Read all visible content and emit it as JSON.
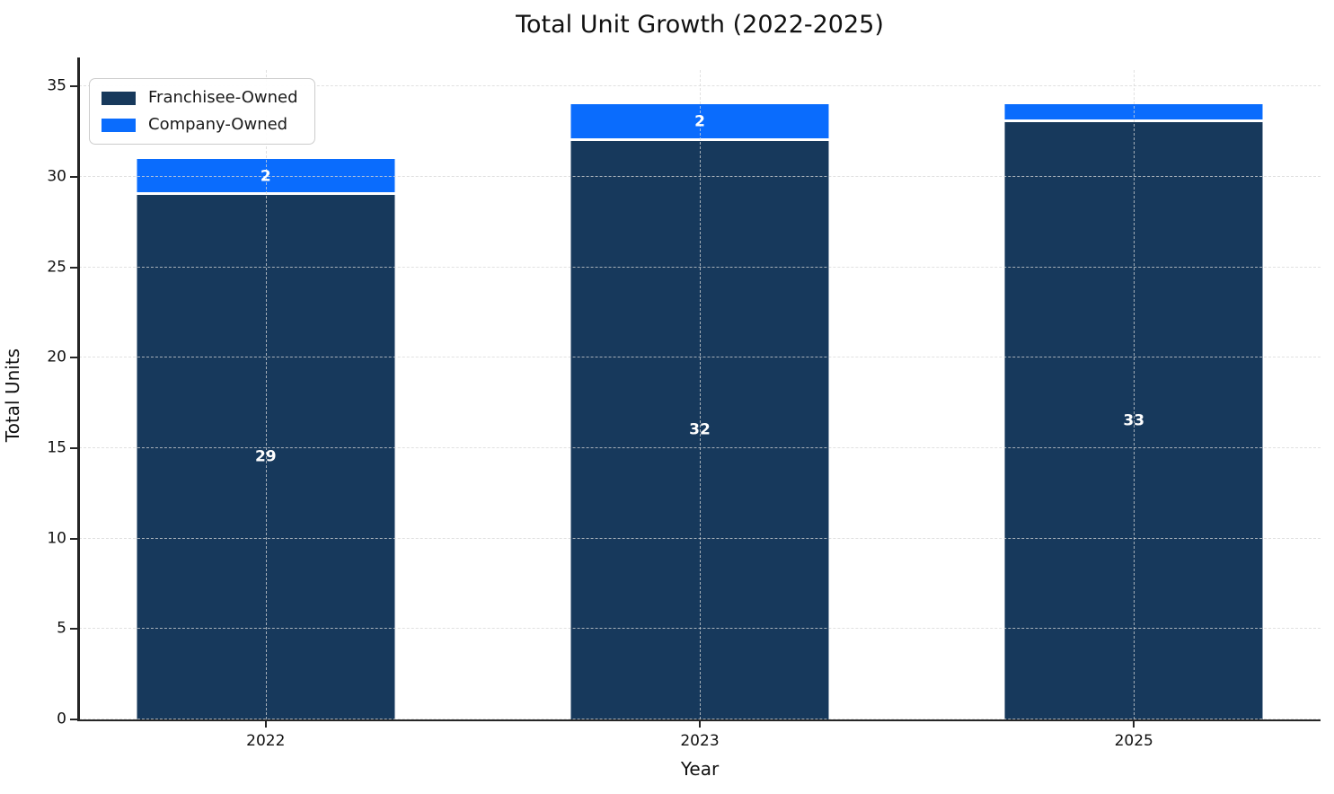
{
  "chart_data": {
    "type": "bar",
    "stacked": true,
    "title": "Total Unit Growth (2022-2025)",
    "xlabel": "Year",
    "ylabel": "Total Units",
    "categories": [
      "2022",
      "2023",
      "2025"
    ],
    "series": [
      {
        "name": "Franchisee-Owned",
        "color": "#17395c",
        "values": [
          29,
          32,
          33
        ],
        "labels": [
          "29",
          "32",
          "33"
        ]
      },
      {
        "name": "Company-Owned",
        "color": "#0a6cfd",
        "values": [
          2,
          2,
          1
        ],
        "labels": [
          "2",
          "2",
          ""
        ]
      }
    ],
    "totals": [
      31,
      34,
      34
    ],
    "yticks": [
      0,
      5,
      10,
      15,
      20,
      25,
      30,
      35
    ],
    "ylim": [
      0,
      35.9
    ],
    "grid": "both-dashed",
    "legend_position": "upper-left",
    "background": "#ffffff"
  }
}
